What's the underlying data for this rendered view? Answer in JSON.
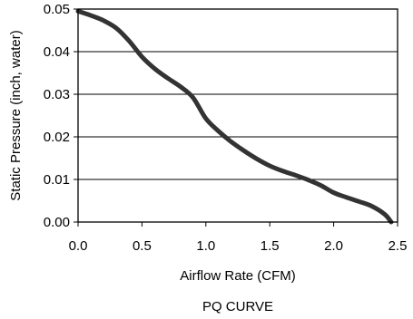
{
  "chart_data": {
    "type": "line",
    "title": "PQ CURVE",
    "xlabel": "Airflow Rate (CFM)",
    "ylabel": "Static Pressure (inch, water)",
    "xlim": [
      0,
      2.5
    ],
    "ylim": [
      0,
      0.05
    ],
    "x_ticks": [
      "0.0",
      "0.5",
      "1.0",
      "1.5",
      "2.0",
      "2.5"
    ],
    "y_ticks": [
      "0.00",
      "0.01",
      "0.02",
      "0.03",
      "0.04",
      "0.05"
    ],
    "grid": true,
    "series": [
      {
        "x": [
          0.0,
          0.1,
          0.2,
          0.3,
          0.4,
          0.5,
          0.6,
          0.7,
          0.8,
          0.9,
          1.0,
          1.1,
          1.2,
          1.3,
          1.4,
          1.5,
          1.6,
          1.7,
          1.8,
          1.9,
          2.0,
          2.1,
          2.2,
          2.3,
          2.4,
          2.45
        ],
        "y": [
          0.0495,
          0.0485,
          0.0473,
          0.0455,
          0.0425,
          0.0388,
          0.036,
          0.0338,
          0.0318,
          0.0292,
          0.0243,
          0.0213,
          0.0188,
          0.0167,
          0.0148,
          0.0132,
          0.012,
          0.011,
          0.0099,
          0.0086,
          0.0069,
          0.0058,
          0.0048,
          0.0037,
          0.0018,
          0.0
        ],
        "color": "#333333"
      }
    ]
  }
}
